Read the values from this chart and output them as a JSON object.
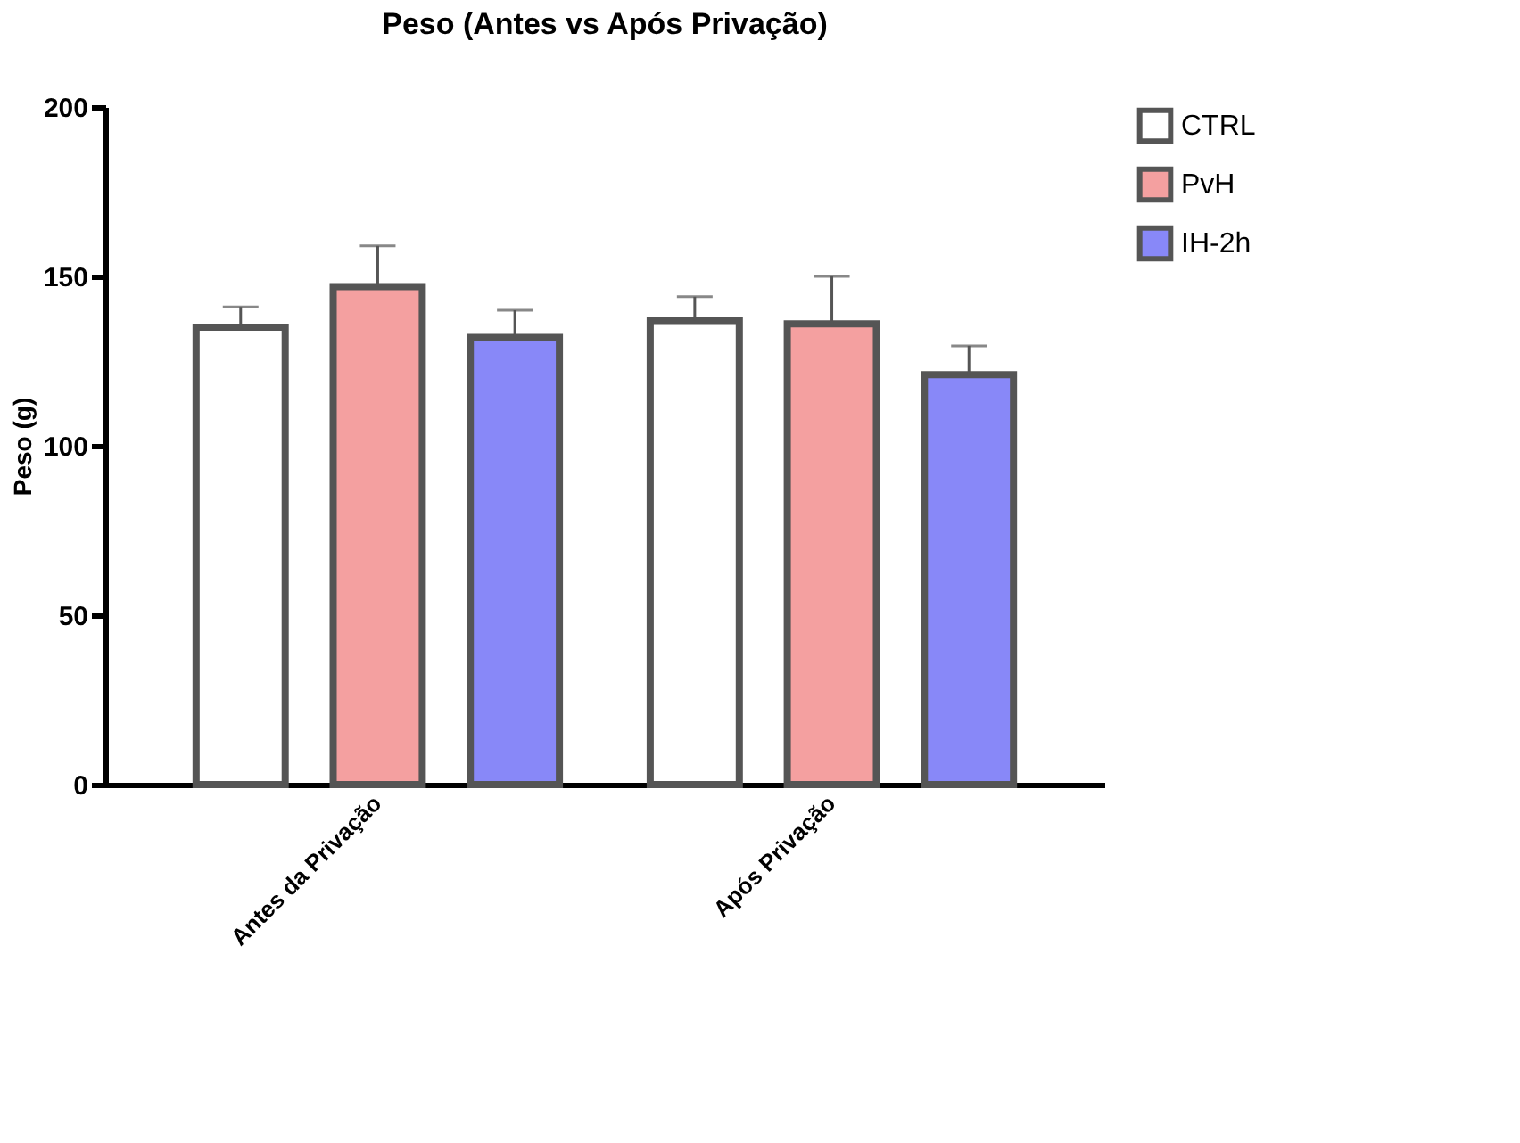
{
  "chart_data": {
    "type": "bar",
    "title": "Peso (Antes vs Após Privação)",
    "ylabel": "Peso (g)",
    "categories": [
      "Antes da Privação",
      "Após Privação"
    ],
    "series": [
      {
        "name": "CTRL",
        "color": "#ffffff",
        "values": [
          135,
          137
        ],
        "errors": [
          [
            135,
            141
          ],
          [
            137,
            144
          ]
        ]
      },
      {
        "name": "PvH",
        "color": "#f4a0a0",
        "values": [
          147,
          136
        ],
        "errors": [
          [
            147,
            159
          ],
          [
            136,
            150
          ]
        ]
      },
      {
        "name": "IH-2h",
        "color": "#8888f8",
        "values": [
          132,
          121
        ],
        "errors": [
          [
            132,
            140
          ],
          [
            121,
            129.5
          ]
        ]
      }
    ],
    "ylim": [
      0,
      200
    ],
    "yticks": [
      0,
      50,
      100,
      150,
      200
    ],
    "grid": false,
    "legend": "top right"
  }
}
